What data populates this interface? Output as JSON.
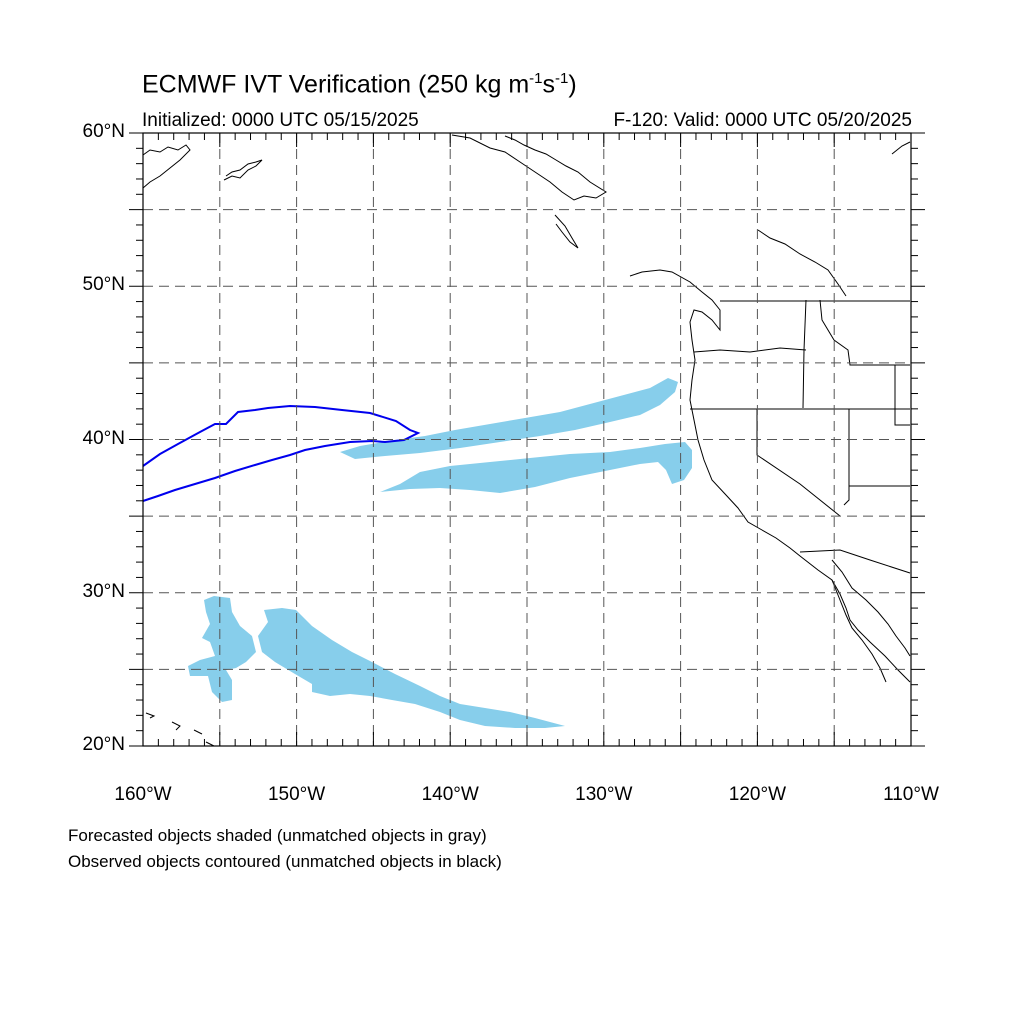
{
  "title": {
    "main": "ECMWF IVT Verification (250 kg m",
    "exp1": "-1",
    "mid": "s",
    "exp2": "-1",
    "end": ")"
  },
  "subtitle": {
    "initialized": "Initialized: 0000 UTC 05/15/2025",
    "valid": "F-120: Valid: 0000 UTC 05/20/2025"
  },
  "map": {
    "lon_range": [
      -160,
      -110
    ],
    "lat_range": [
      20,
      60
    ],
    "lat_labels": [
      "60°N",
      "50°N",
      "40°N",
      "30°N",
      "20°N"
    ],
    "lon_labels": [
      "160°W",
      "150°W",
      "140°W",
      "130°W",
      "120°W",
      "110°W"
    ],
    "forecast_color": "#87ceeb",
    "observed_color": "#0000ee"
  },
  "legend": {
    "line1": "Forecasted objects shaded (unmatched objects in gray)",
    "line2": "Observed objects contoured (unmatched objects in black)"
  }
}
